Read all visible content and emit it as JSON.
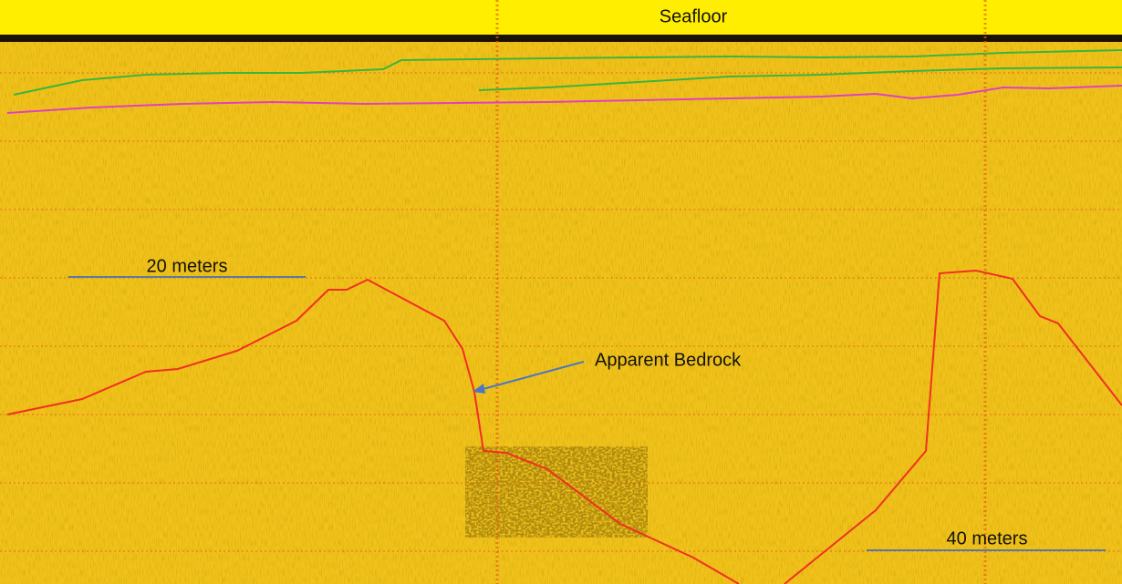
{
  "labels": {
    "top": "Seafloor",
    "scale_left": "20 meters",
    "annotation": "Apparent Bedrock",
    "scale_right": "40 meters"
  }
}
